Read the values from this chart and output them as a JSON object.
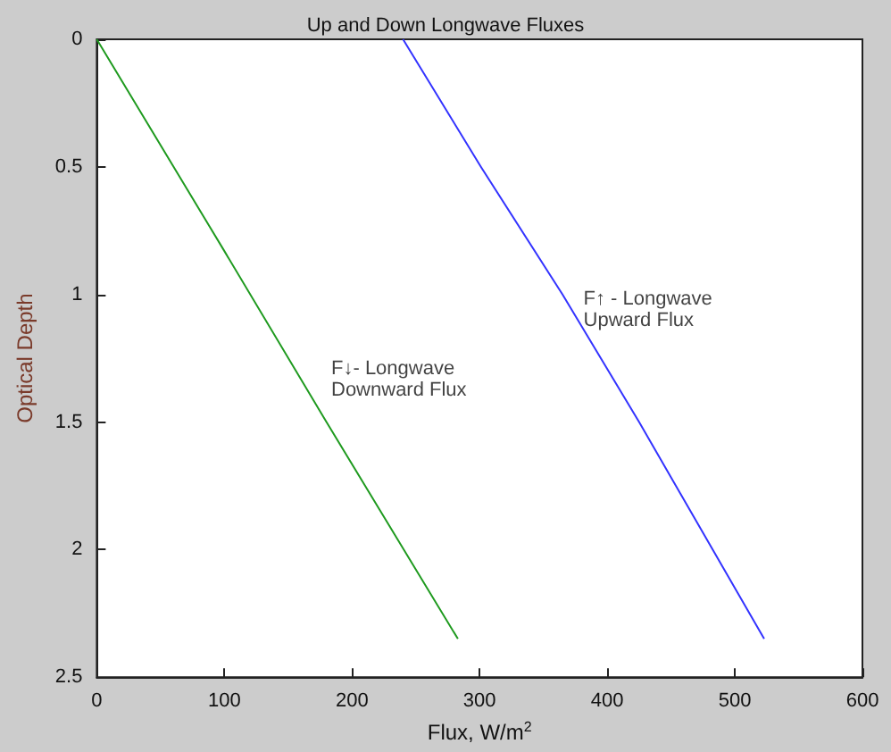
{
  "chart_data": {
    "type": "line",
    "title": "Up and Down Longwave Fluxes",
    "xlabel": "Flux, W/m$^{2}$",
    "ylabel": "Optical Depth",
    "xlim": [
      0,
      600
    ],
    "xticks": [
      0,
      100,
      200,
      300,
      400,
      500,
      600
    ],
    "ylim": [
      2.5,
      0
    ],
    "yticks": [
      0,
      0.5,
      1,
      1.5,
      2,
      2.5
    ],
    "series": [
      {
        "name": "F↓- Longwave\nDownward Flux",
        "color": "#1f9a1f",
        "x": [
          0,
          100,
          180,
          283
        ],
        "values": [
          0,
          0.83,
          1.5,
          2.35
        ]
      },
      {
        "name": "F↑ - Longwave\nUpward Flux",
        "color": "#3333ff",
        "x": [
          240,
          301,
          365,
          425,
          523
        ],
        "values": [
          0,
          0.5,
          1,
          1.5,
          2.35
        ]
      }
    ],
    "grid": false,
    "marker": "none",
    "line_style": "solid"
  }
}
